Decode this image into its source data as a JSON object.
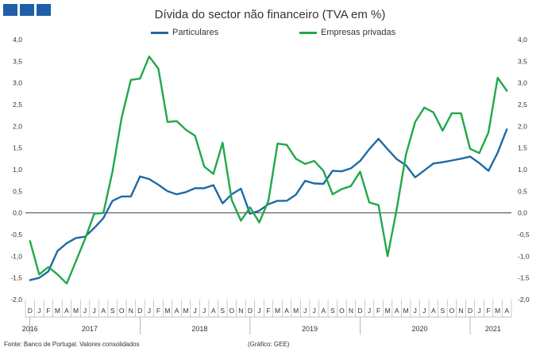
{
  "logo": {
    "squares": 3,
    "color": "#1f5ea8"
  },
  "footer": {
    "source": "Fonte: Banco de Portugal. Valores consolidados",
    "credit": "(Gráfico: GEE)"
  },
  "chart_data": {
    "type": "line",
    "title": "Dívida do sector não financeiro (TVA em %)",
    "xlabel": "",
    "ylabel": "",
    "ylim": [
      -2.0,
      4.0
    ],
    "y_ticks": [
      "-2,0",
      "-1,5",
      "-1,0",
      "-0,5",
      "0,0",
      "0,5",
      "1,0",
      "1,5",
      "2,0",
      "2,5",
      "3,0",
      "3,5",
      "4,0"
    ],
    "y2_ticks": [
      "-2,0",
      "-1,5",
      "-1,0",
      "-0,5",
      "0,0",
      "0,5",
      "1,0",
      "1,5",
      "2,0",
      "2,5",
      "3,0",
      "3,5",
      "4,0"
    ],
    "grid": false,
    "legend_position": "top-center",
    "month_labels": [
      "D",
      "J",
      "F",
      "M",
      "A",
      "M",
      "J",
      "J",
      "A",
      "S",
      "O",
      "N",
      "D",
      "J",
      "F",
      "M",
      "A",
      "M",
      "J",
      "J",
      "A",
      "S",
      "O",
      "N",
      "D",
      "J",
      "F",
      "M",
      "A",
      "M",
      "J",
      "J",
      "A",
      "S",
      "O",
      "N",
      "D",
      "J",
      "F",
      "M",
      "A",
      "M",
      "J",
      "J",
      "A",
      "S",
      "O",
      "N",
      "D",
      "J",
      "F",
      "M",
      "A"
    ],
    "year_labels": [
      {
        "label": "2016",
        "index": 0
      },
      {
        "label": "2017",
        "index": 6.5
      },
      {
        "label": "2018",
        "index": 18.5
      },
      {
        "label": "2019",
        "index": 30.5
      },
      {
        "label": "2020",
        "index": 42.5
      },
      {
        "label": "2021",
        "index": 50.5
      }
    ],
    "year_separators": [
      0.5,
      12.5,
      24.5,
      36.5,
      48.5
    ],
    "series": [
      {
        "name": "Particulares",
        "color": "#1f6aa5",
        "values": [
          -1.55,
          -1.5,
          -1.35,
          -0.88,
          -0.7,
          -0.58,
          -0.55,
          -0.35,
          -0.12,
          0.28,
          0.38,
          0.38,
          0.84,
          0.78,
          0.65,
          0.5,
          0.43,
          0.48,
          0.57,
          0.57,
          0.64,
          0.22,
          0.43,
          0.56,
          -0.02,
          0.05,
          0.2,
          0.28,
          0.28,
          0.42,
          0.74,
          0.68,
          0.67,
          0.97,
          0.96,
          1.03,
          1.2,
          1.47,
          1.71,
          1.47,
          1.24,
          1.1,
          0.82,
          0.98,
          1.14,
          1.17,
          1.21,
          1.25,
          1.3,
          1.15,
          0.97,
          1.39,
          1.93
        ]
      },
      {
        "name": "Empresas privadas",
        "color": "#21a84a",
        "values": [
          -0.65,
          -1.42,
          -1.25,
          -1.42,
          -1.63,
          -1.12,
          -0.6,
          -0.02,
          0.0,
          0.96,
          2.2,
          3.07,
          3.1,
          3.61,
          3.33,
          2.1,
          2.12,
          1.92,
          1.78,
          1.07,
          0.9,
          1.62,
          0.3,
          -0.18,
          0.13,
          -0.22,
          0.28,
          1.6,
          1.57,
          1.25,
          1.13,
          1.2,
          0.97,
          0.43,
          0.55,
          0.62,
          0.95,
          0.24,
          0.18,
          -1.0,
          0.1,
          1.35,
          2.1,
          2.43,
          2.32,
          1.9,
          2.3,
          2.3,
          1.48,
          1.38,
          1.86,
          3.12,
          2.82
        ]
      }
    ]
  }
}
